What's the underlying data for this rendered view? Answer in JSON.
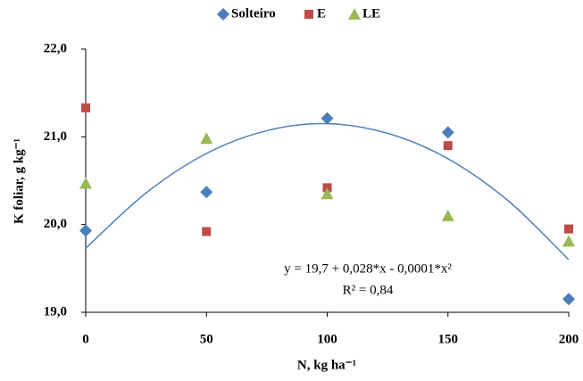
{
  "chart_data": {
    "type": "scatter",
    "x_label": "N, kg ha⁻¹",
    "y_label": "K foliar, g kg⁻¹",
    "x": [
      0,
      50,
      100,
      150,
      200
    ],
    "series": [
      {
        "name": "Solteiro",
        "color": "#4a7ebb",
        "marker": "diamond",
        "values": [
          19.93,
          20.37,
          21.21,
          21.05,
          19.15
        ]
      },
      {
        "name": "E",
        "color": "#be4b48",
        "marker": "square",
        "values": [
          21.33,
          19.92,
          20.42,
          20.9,
          19.95
        ]
      },
      {
        "name": "LE",
        "color": "#98b954",
        "marker": "triangle",
        "values": [
          20.47,
          20.98,
          20.35,
          20.1,
          19.81
        ]
      }
    ],
    "trendline": {
      "color": "#4f81bd",
      "x": [
        0,
        25,
        50,
        75,
        100,
        125,
        150,
        175,
        200
      ],
      "values": [
        19.73,
        20.36,
        20.81,
        21.07,
        21.15,
        21.04,
        20.75,
        20.27,
        19.6
      ]
    },
    "annotations": [
      "y = 19,7 + 0,028*x - 0,0001*x²",
      "R² = 0,84"
    ],
    "xlim": [
      0,
      200
    ],
    "xticks": [
      0,
      50,
      100,
      150,
      200
    ],
    "ylim": [
      19,
      22
    ],
    "yticks": [
      {
        "value": 19,
        "label": "19,0"
      },
      {
        "value": 20,
        "label": "20,0"
      },
      {
        "value": 21,
        "label": "21,0"
      },
      {
        "value": 22,
        "label": "22,0"
      }
    ],
    "grid": false,
    "legend": "top"
  }
}
